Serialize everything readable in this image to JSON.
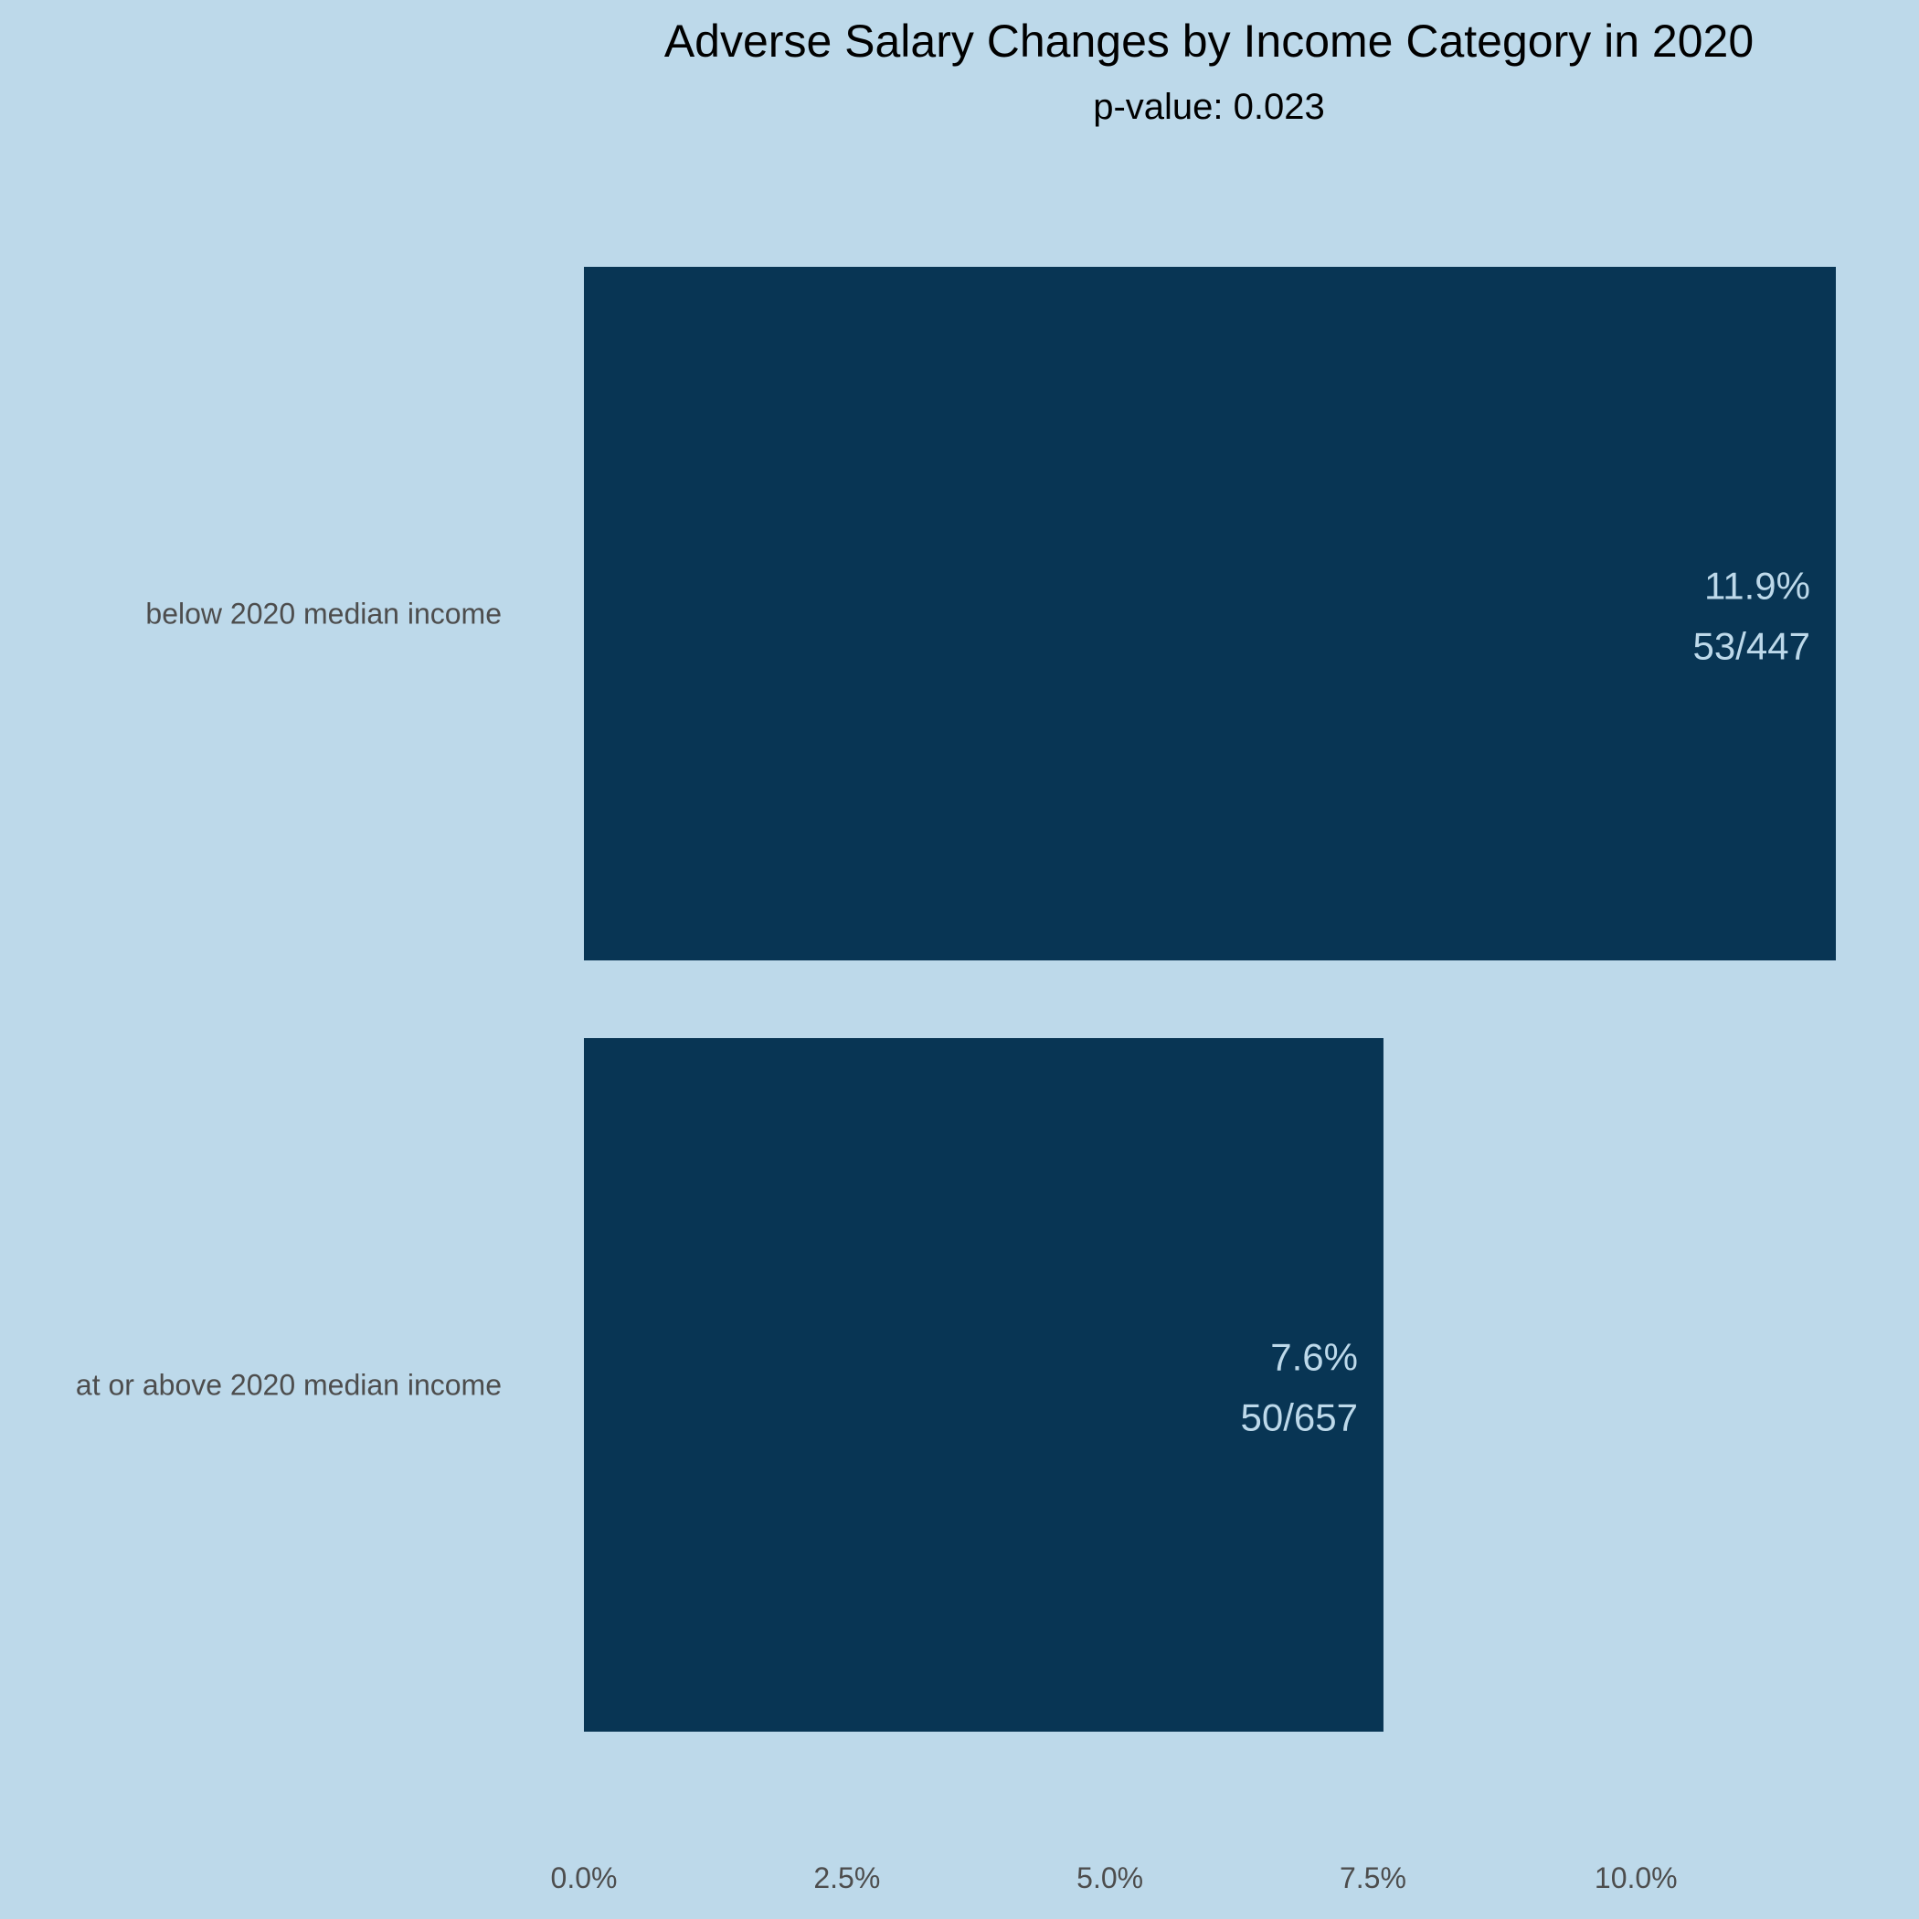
{
  "chart_data": {
    "type": "bar",
    "orientation": "horizontal",
    "title": "Adverse Salary Changes by Income Category in 2020",
    "subtitle": "p-value: 0.023",
    "xlabel": "",
    "ylabel": "",
    "categories": [
      "below 2020 median income",
      "at or above 2020 median income"
    ],
    "values": [
      11.9,
      7.6
    ],
    "value_labels": [
      "11.9%",
      "7.6%"
    ],
    "count_labels": [
      "53/447",
      "50/657"
    ],
    "x_ticks": [
      0,
      2.5,
      5,
      7.5,
      10
    ],
    "x_tick_labels": [
      "0.0%",
      "2.5%",
      "5.0%",
      "7.5%",
      "10.0%"
    ],
    "xlim": [
      0,
      11.9
    ],
    "grid": false,
    "legend": "none",
    "colors": {
      "background": "#bdd9ea",
      "bar": "#083554",
      "bar_label": "#bdd9ea",
      "axis_text": "#4d4d4d",
      "title": "#000000"
    }
  }
}
